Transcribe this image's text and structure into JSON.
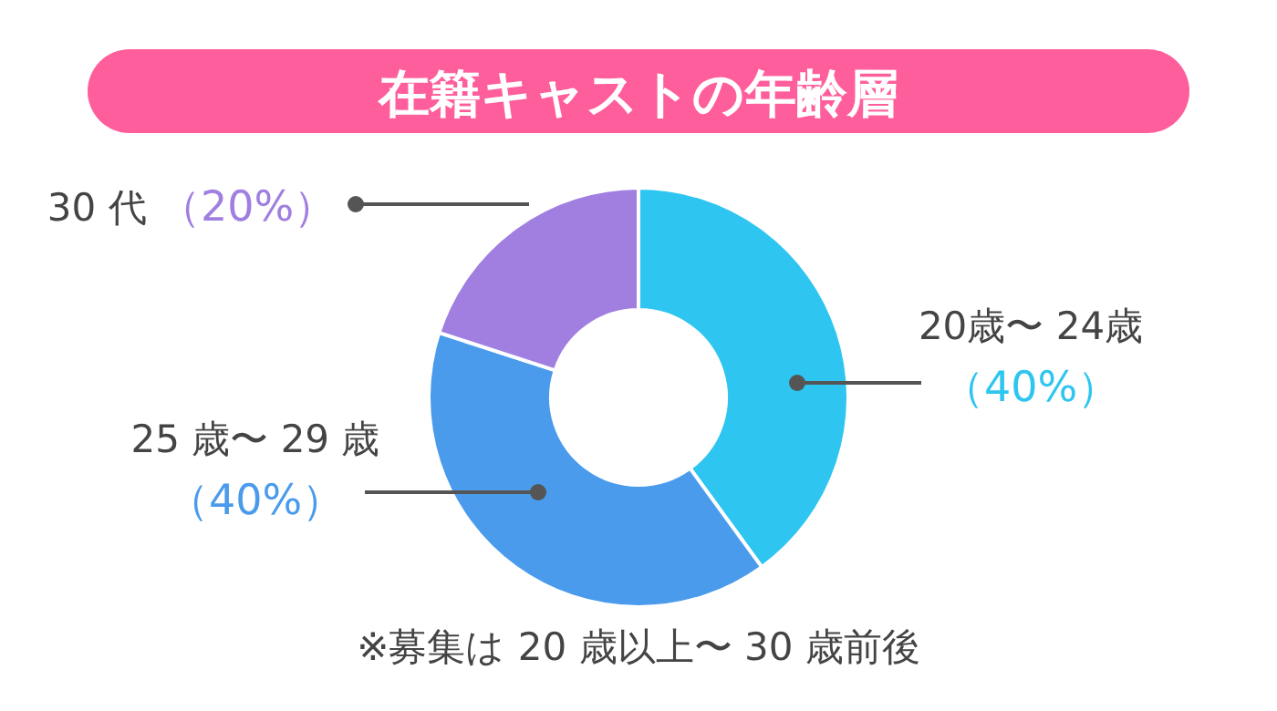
{
  "chart_data": {
    "type": "donut",
    "title": "在籍キャストの年齢層",
    "categories": [
      "20歳〜 24歳",
      "25 歳〜 29 歳",
      "30 代"
    ],
    "values": [
      40,
      40,
      20
    ],
    "value_labels": [
      "（40%）",
      "（40%）",
      "（20%）"
    ],
    "colors": [
      "#2ec5f0",
      "#4a9bec",
      "#a07fe0"
    ],
    "annotations": [
      "※募集は 20 歳以上〜 30 歳前後"
    ]
  }
}
